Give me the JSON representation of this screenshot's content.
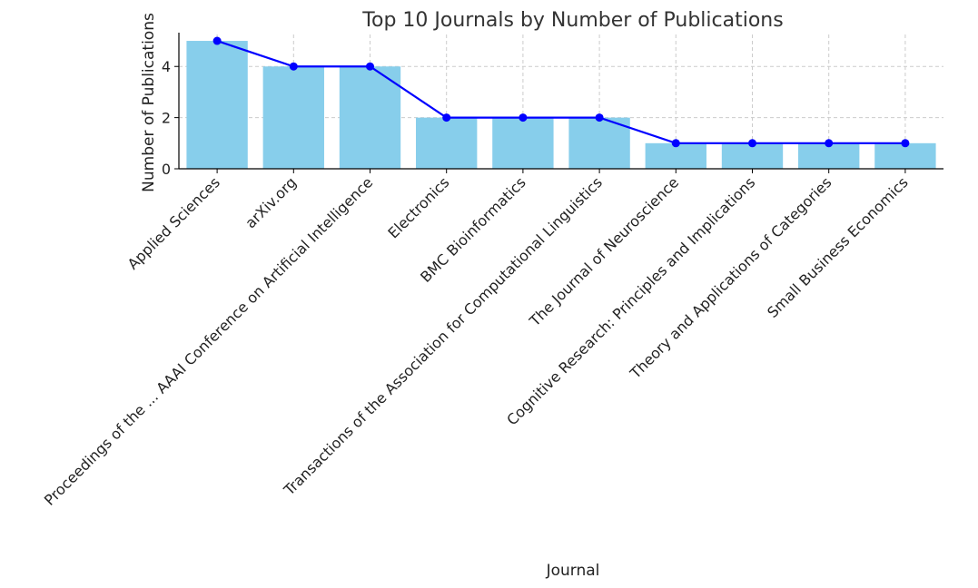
{
  "chart_data": {
    "type": "bar",
    "title": "Top 10 Journals by Number of Publications",
    "xlabel": "Journal",
    "ylabel": "Number of Publications",
    "ylim": [
      0,
      5.25
    ],
    "yticks": [
      0,
      2,
      4
    ],
    "grid": true,
    "categories": [
      "Applied Sciences",
      "arXiv.org",
      "Proceedings of the ... AAAI Conference on Artificial Intelligence",
      "Electronics",
      "BMC Bioinformatics",
      "Transactions of the Association for Computational Linguistics",
      "The Journal of Neuroscience",
      "Cognitive Research: Principles and Implications",
      "Theory and Applications of Categories",
      "Small Business Economics"
    ],
    "series": [
      {
        "type": "bar",
        "values": [
          5,
          4,
          4,
          2,
          2,
          2,
          1,
          1,
          1,
          1
        ],
        "color": "#87ceeb"
      },
      {
        "type": "line",
        "values": [
          5,
          4,
          4,
          2,
          2,
          2,
          1,
          1,
          1,
          1
        ],
        "color": "#0000ff",
        "marker": "circle"
      }
    ]
  }
}
